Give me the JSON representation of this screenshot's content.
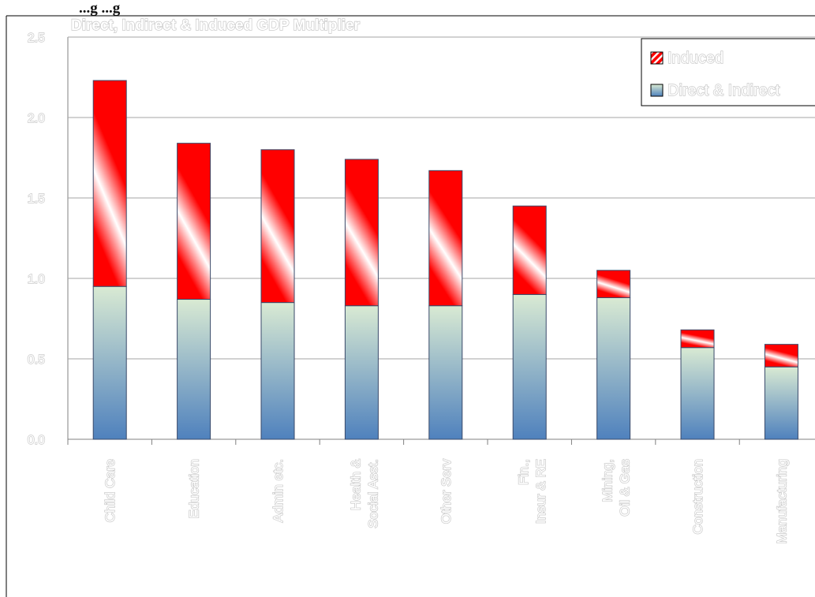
{
  "header": {
    "heading": "...g                    ...g"
  },
  "chart_data": {
    "type": "bar",
    "stacked": true,
    "title": "Direct, Indirect & Induced GDP Multiplier",
    "xlabel": "",
    "ylabel": "",
    "ylim": [
      0,
      2.5
    ],
    "yticks": [
      "0.0",
      "0.5",
      "1.0",
      "1.5",
      "2.0",
      "2.5"
    ],
    "grid": true,
    "legend_position": "top-right",
    "categories": [
      "Child Care",
      "Education",
      "Admin etc.",
      "Health & Social Asst.",
      "Other Serv",
      "Fin., Insur & RE",
      "Mining, Oil & Gas",
      "Construction",
      "Manufacturing"
    ],
    "series": [
      {
        "name": "Direct & Indirect",
        "values": [
          0.95,
          0.87,
          0.85,
          0.83,
          0.83,
          0.9,
          0.88,
          0.57,
          0.45
        ],
        "color_top": "#d9ead3",
        "color_bottom": "#4f81bd"
      },
      {
        "name": "Induced",
        "values": [
          1.28,
          0.97,
          0.95,
          0.91,
          0.84,
          0.55,
          0.17,
          0.11,
          0.14
        ],
        "color": "#ff0000",
        "stripe": "#ffffff"
      }
    ]
  }
}
